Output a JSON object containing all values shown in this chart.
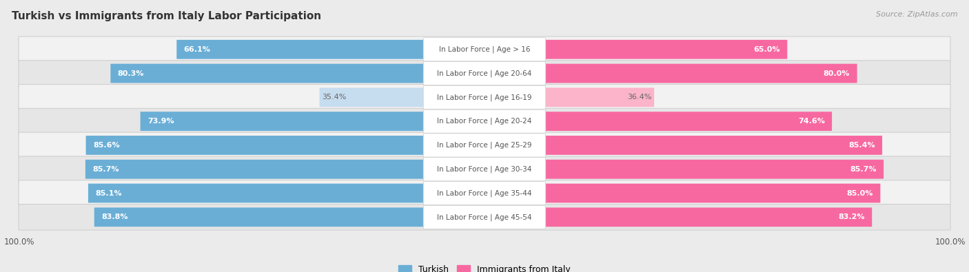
{
  "title": "Turkish vs Immigrants from Italy Labor Participation",
  "source": "Source: ZipAtlas.com",
  "categories": [
    "In Labor Force | Age > 16",
    "In Labor Force | Age 20-64",
    "In Labor Force | Age 16-19",
    "In Labor Force | Age 20-24",
    "In Labor Force | Age 25-29",
    "In Labor Force | Age 30-34",
    "In Labor Force | Age 35-44",
    "In Labor Force | Age 45-54"
  ],
  "turkish_values": [
    66.1,
    80.3,
    35.4,
    73.9,
    85.6,
    85.7,
    85.1,
    83.8
  ],
  "italy_values": [
    65.0,
    80.0,
    36.4,
    74.6,
    85.4,
    85.7,
    85.0,
    83.2
  ],
  "turkish_color": "#6aaed6",
  "turkey_light_color": "#c6dcef",
  "italy_color": "#f768a1",
  "italy_light_color": "#fbb4c9",
  "row_odd_color": "#f2f2f2",
  "row_even_color": "#e6e6e6",
  "row_border_color": "#d0d0d0",
  "label_bg_color": "#ffffff",
  "label_text_color": "#555555",
  "bg_color": "#ebebeb",
  "max_value": 100.0,
  "bar_height": 0.72,
  "figsize": [
    14.06,
    3.95
  ],
  "dpi": 100,
  "title_fontsize": 11,
  "label_fontsize": 7.5,
  "value_fontsize": 8.0
}
